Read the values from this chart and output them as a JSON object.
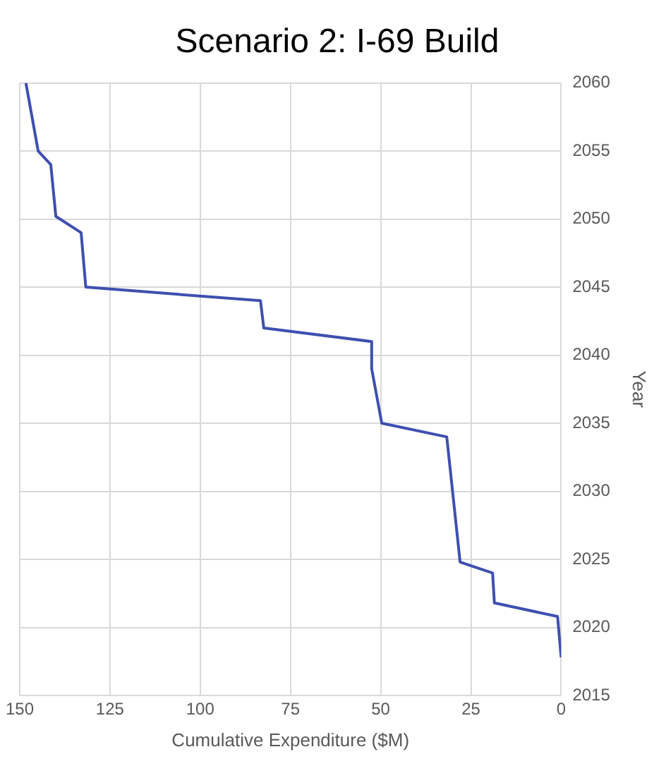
{
  "chart_data": {
    "type": "line",
    "title": "Scenario 2: I-69 Build",
    "xlabel": "Cumulative Expenditure ($M)",
    "ylabel": "Year",
    "xlim": [
      150,
      0
    ],
    "xticks": [
      150,
      125,
      100,
      75,
      50,
      25,
      0
    ],
    "ylim": [
      2015,
      2060
    ],
    "yticks": [
      2015,
      2020,
      2025,
      2030,
      2035,
      2040,
      2045,
      2050,
      2055,
      2060
    ],
    "grid": true,
    "legend": false,
    "marker": "none",
    "line_style": "solid",
    "series": [
      {
        "color": "#3f4fb0",
        "x": [
          0,
          1,
          18.5,
          19,
          28,
          31.7,
          49.7,
          50.4,
          52.5,
          52.5,
          82.4,
          83.3,
          131.7,
          133,
          140,
          141.4,
          144.9,
          148.3
        ],
        "values": [
          2017.8,
          2020.8,
          2021.8,
          2024,
          2024.8,
          2034,
          2035,
          2036,
          2039,
          2041,
          2042,
          2044,
          2045,
          2049,
          2050.2,
          2054,
          2055,
          2060
        ]
      }
    ]
  }
}
